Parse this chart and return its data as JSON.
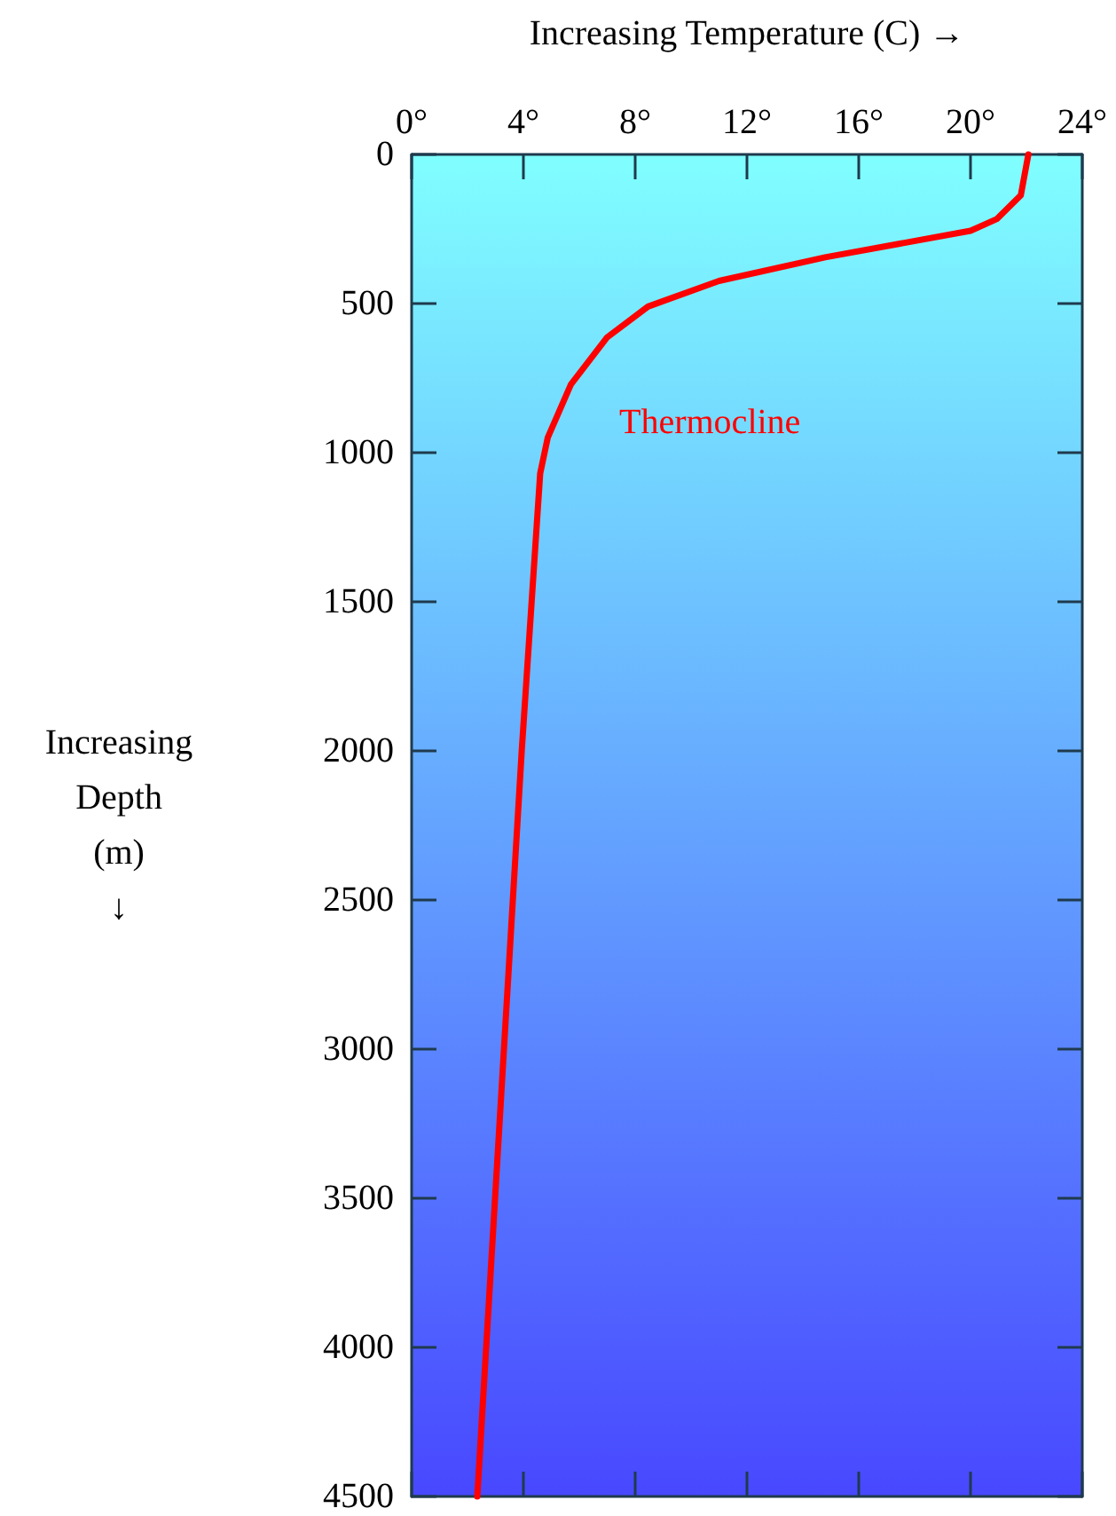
{
  "chart_data": {
    "type": "line",
    "xlabel": "Increasing Temperature (C) →",
    "ylabel": "Increasing Depth (m) ↓",
    "annotations": [
      "Thermocline"
    ],
    "series": [
      {
        "color": "#ff0000",
        "x": [
          22.07,
          21.8,
          20.95,
          20.0,
          14.8,
          11.0,
          8.46,
          7.0,
          5.7,
          4.87,
          4.6,
          3.94,
          2.35
        ],
        "values": [
          0,
          137,
          216,
          256,
          345,
          424,
          510,
          613,
          771,
          950,
          1070,
          2000,
          4500
        ]
      }
    ],
    "xlim": [
      0,
      24
    ],
    "xticks": [
      {
        "value": 0,
        "label": "0°"
      },
      {
        "value": 4,
        "label": "4°"
      },
      {
        "value": 8,
        "label": "8°"
      },
      {
        "value": 12,
        "label": "12°"
      },
      {
        "value": 16,
        "label": "16°"
      },
      {
        "value": 20,
        "label": "20°"
      },
      {
        "value": 24,
        "label": "24°"
      }
    ],
    "ylim": [
      4500,
      0
    ],
    "yticks": [
      0,
      500,
      1000,
      1500,
      2000,
      2500,
      3000,
      3500,
      4000,
      4500
    ],
    "grid": false,
    "marker": "none",
    "line_style": "solid"
  }
}
